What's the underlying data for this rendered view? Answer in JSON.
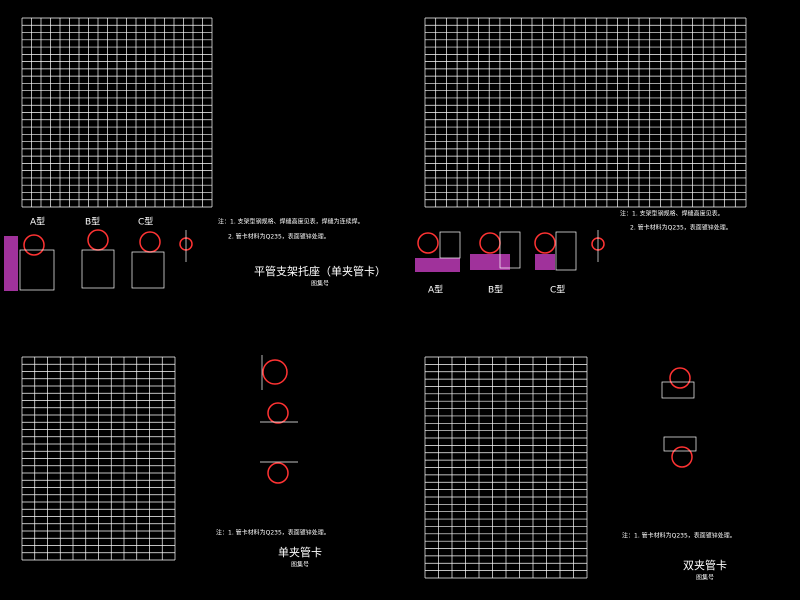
{
  "sheets": [
    {
      "title": "平管支架托座（单夹管卡）",
      "subtitle": "图集号",
      "note": "注：1. 支架型钢规格、焊缝高度见表，焊缝为连续焊。",
      "note2": "2. 管卡材料为Q235，表面镀锌处理。",
      "view_labels": [
        "A型",
        "B型",
        "C型"
      ]
    },
    {
      "note": "注：1. 支架型钢规格、焊缝高度见表。",
      "note2": "2. 管卡材料为Q235，表面镀锌处理。",
      "view_labels": [
        "A型",
        "B型",
        "C型"
      ]
    },
    {
      "title": "单夹管卡",
      "subtitle": "图集号",
      "note": "注：1. 管卡材料为Q235，表面镀锌处理。"
    },
    {
      "title": "双夹管卡",
      "subtitle": "图集号",
      "note": "注：1. 管卡材料为Q235，表面镀锌处理。"
    }
  ]
}
